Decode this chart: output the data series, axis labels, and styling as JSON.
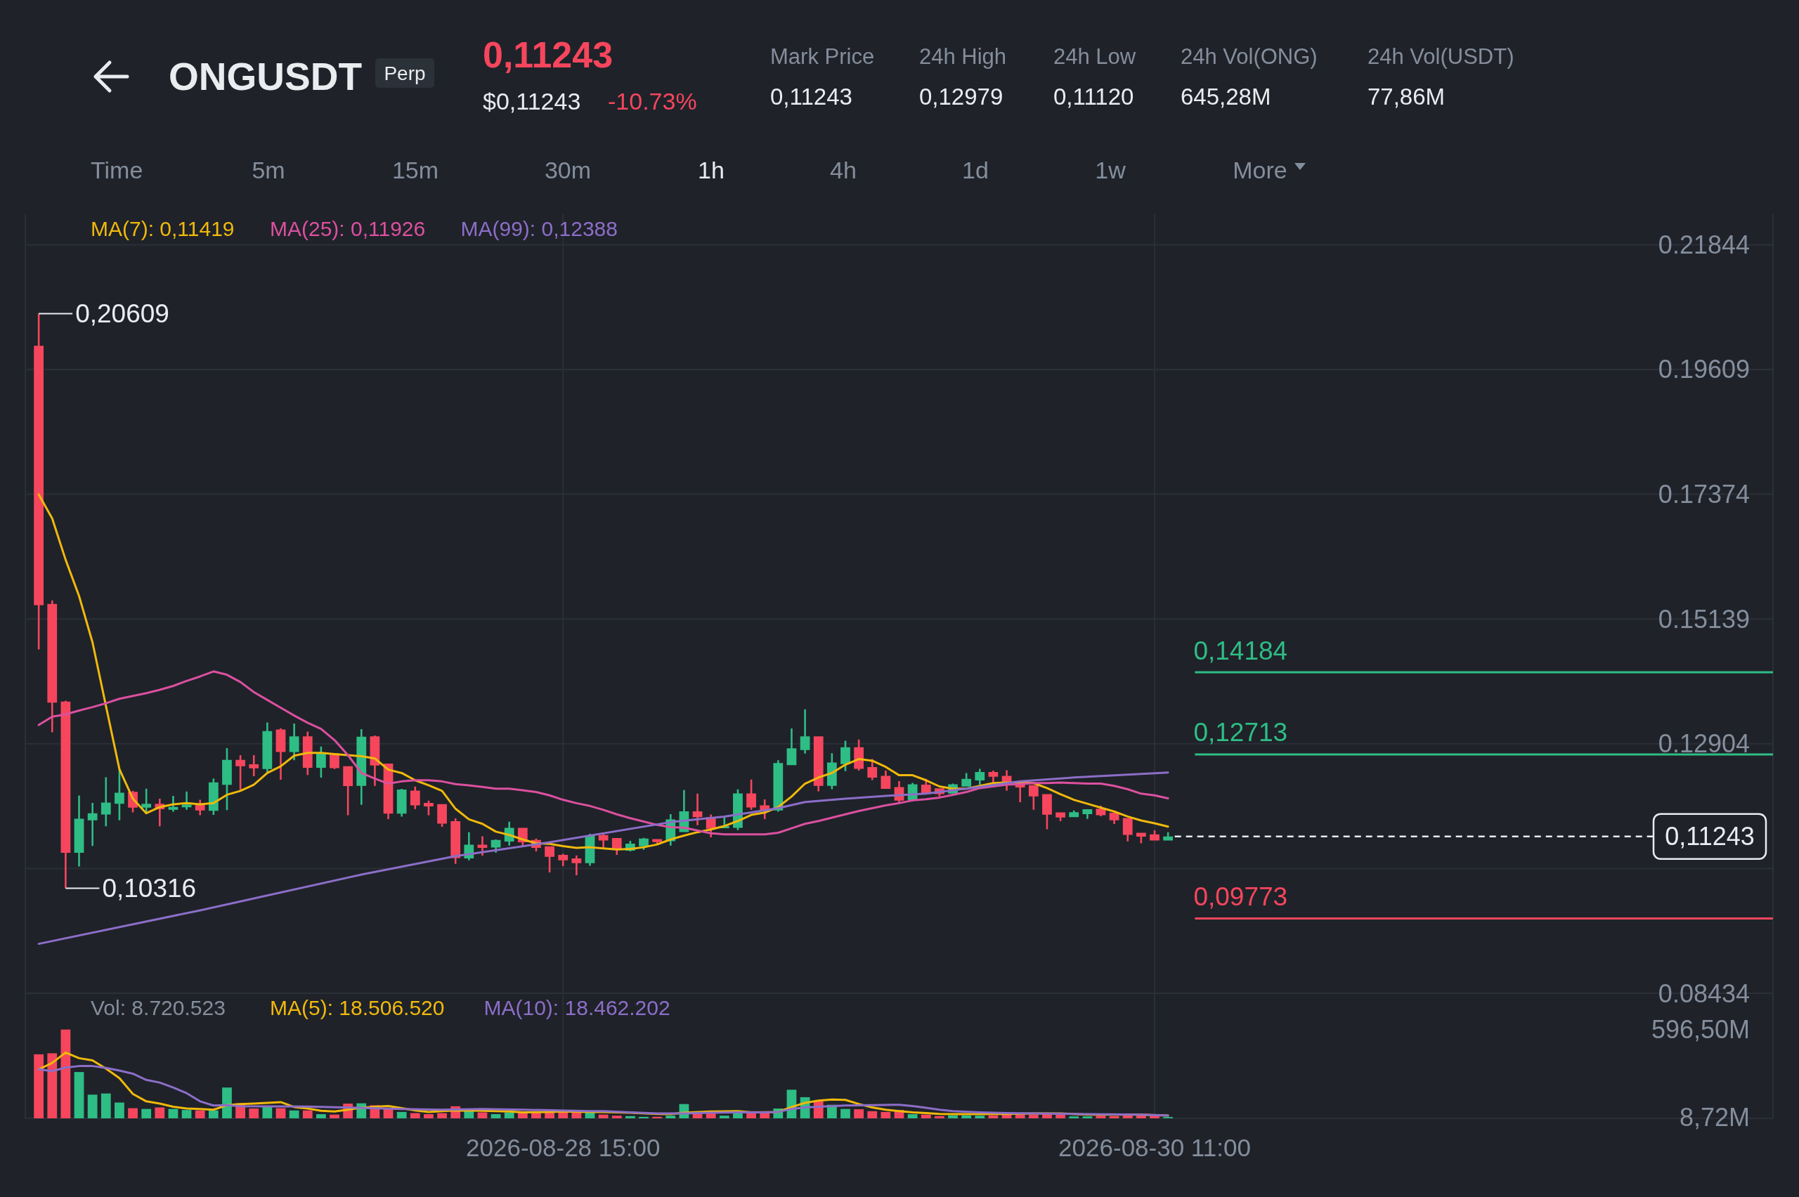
{
  "chart_data": [
    {
      "type": "candlestick",
      "title": "ONGUSDT",
      "annotations": [
        "Perp",
        "0,11243",
        "$0,11243",
        "-10.73%",
        "Mark Price",
        "0,11243",
        "24h High",
        "0,12979",
        "24h Low",
        "0,11120",
        "24h Vol(ONG)",
        "645,28M",
        "24h Vol(USDT)",
        "77,86M",
        "Time",
        "5m",
        "15m",
        "30m",
        "1h",
        "4h",
        "1d",
        "1w",
        "More",
        {
          "text": "0,20609",
          "x": "2026-08-27T00:00",
          "y": 0.20609
        },
        {
          "text": "0,10316",
          "x": "2026-08-27T02:00",
          "y": 0.10316
        }
      ],
      "x": [
        "2026-08-27T00:00",
        "2026-08-27T01:00",
        "2026-08-27T02:00",
        "2026-08-27T03:00",
        "2026-08-27T04:00",
        "2026-08-27T05:00",
        "2026-08-27T06:00",
        "2026-08-27T07:00",
        "2026-08-27T08:00",
        "2026-08-27T09:00",
        "2026-08-27T10:00",
        "2026-08-27T11:00",
        "2026-08-27T12:00",
        "2026-08-27T13:00",
        "2026-08-27T14:00",
        "2026-08-27T15:00",
        "2026-08-27T16:00",
        "2026-08-27T17:00",
        "2026-08-27T18:00",
        "2026-08-27T19:00",
        "2026-08-27T20:00",
        "2026-08-27T21:00",
        "2026-08-27T22:00",
        "2026-08-27T23:00",
        "2026-08-28T00:00",
        "2026-08-28T01:00",
        "2026-08-28T02:00",
        "2026-08-28T03:00",
        "2026-08-28T04:00",
        "2026-08-28T05:00",
        "2026-08-28T06:00",
        "2026-08-28T07:00",
        "2026-08-28T08:00",
        "2026-08-28T09:00",
        "2026-08-28T10:00",
        "2026-08-28T11:00",
        "2026-08-28T12:00",
        "2026-08-28T13:00",
        "2026-08-28T14:00",
        "2026-08-28T15:00",
        "2026-08-28T16:00",
        "2026-08-28T17:00",
        "2026-08-28T18:00",
        "2026-08-28T19:00",
        "2026-08-28T20:00",
        "2026-08-28T21:00",
        "2026-08-28T22:00",
        "2026-08-28T23:00",
        "2026-08-29T00:00",
        "2026-08-29T01:00",
        "2026-08-29T02:00",
        "2026-08-29T03:00",
        "2026-08-29T04:00",
        "2026-08-29T05:00",
        "2026-08-29T06:00",
        "2026-08-29T07:00",
        "2026-08-29T08:00",
        "2026-08-29T09:00",
        "2026-08-29T10:00",
        "2026-08-29T11:00",
        "2026-08-29T12:00",
        "2026-08-29T13:00",
        "2026-08-29T14:00",
        "2026-08-29T15:00",
        "2026-08-29T16:00",
        "2026-08-29T17:00",
        "2026-08-29T18:00",
        "2026-08-29T19:00",
        "2026-08-29T20:00",
        "2026-08-29T21:00",
        "2026-08-29T22:00",
        "2026-08-29T23:00",
        "2026-08-30T00:00",
        "2026-08-30T01:00",
        "2026-08-30T02:00",
        "2026-08-30T03:00",
        "2026-08-30T04:00",
        "2026-08-30T05:00",
        "2026-08-30T06:00",
        "2026-08-30T07:00",
        "2026-08-30T08:00",
        "2026-08-30T09:00",
        "2026-08-30T10:00",
        "2026-08-30T11:00",
        "2026-08-30T12:00"
      ],
      "ohlc": [
        [
          0.20033,
          0.20609,
          0.14594,
          0.15387
        ],
        [
          0.15408,
          0.15471,
          0.13109,
          0.1364
        ],
        [
          0.13661,
          0.13675,
          0.10316,
          0.10952
        ],
        [
          0.10952,
          0.11978,
          0.10705,
          0.1156
        ],
        [
          0.11532,
          0.11843,
          0.11072,
          0.11659
        ],
        [
          0.11638,
          0.12303,
          0.11426,
          0.1185
        ],
        [
          0.11829,
          0.12445,
          0.11532,
          0.12027
        ],
        [
          0.12041,
          0.12062,
          0.11673,
          0.11758
        ],
        [
          0.11758,
          0.12098,
          0.11673,
          0.11829
        ],
        [
          0.11829,
          0.11921,
          0.11426,
          0.1173
        ],
        [
          0.11723,
          0.1197,
          0.11687,
          0.11773
        ],
        [
          0.11765,
          0.12048,
          0.11723,
          0.11815
        ],
        [
          0.11815,
          0.119,
          0.11624,
          0.11709
        ],
        [
          0.11702,
          0.12282,
          0.11631,
          0.12211
        ],
        [
          0.12168,
          0.12827,
          0.11716,
          0.12614
        ],
        [
          0.12614,
          0.12699,
          0.12077,
          0.12501
        ],
        [
          0.12536,
          0.12699,
          0.12324,
          0.12465
        ],
        [
          0.12451,
          0.13286,
          0.12381,
          0.13131
        ],
        [
          0.13159,
          0.1318,
          0.12261,
          0.12756
        ],
        [
          0.12756,
          0.13265,
          0.12609,
          0.13038
        ],
        [
          0.13038,
          0.13123,
          0.12346,
          0.12473
        ],
        [
          0.12473,
          0.12855,
          0.12296,
          0.12735
        ],
        [
          0.12735,
          0.12735,
          0.12451,
          0.12466
        ],
        [
          0.12501,
          0.12501,
          0.11624,
          0.12147
        ],
        [
          0.1215,
          0.13165,
          0.1181,
          0.1303
        ],
        [
          0.13038,
          0.13051,
          0.12149,
          0.12514
        ],
        [
          0.12548,
          0.12548,
          0.11554,
          0.11654
        ],
        [
          0.11654,
          0.12095,
          0.116,
          0.12082
        ],
        [
          0.12065,
          0.12137,
          0.11734,
          0.11801
        ],
        [
          0.11843,
          0.11885,
          0.11625,
          0.1178
        ],
        [
          0.11822,
          0.11822,
          0.11415,
          0.11474
        ],
        [
          0.11516,
          0.11566,
          0.10753,
          0.10858
        ],
        [
          0.10849,
          0.11319,
          0.10816,
          0.11097
        ],
        [
          0.11097,
          0.11248,
          0.109,
          0.11038
        ],
        [
          0.11046,
          0.11189,
          0.10954,
          0.11181
        ],
        [
          0.11151,
          0.11508,
          0.1108,
          0.11399
        ],
        [
          0.11399,
          0.11399,
          0.11059,
          0.11139
        ],
        [
          0.11181,
          0.11206,
          0.10975,
          0.11038
        ],
        [
          0.11067,
          0.11067,
          0.10598,
          0.10879
        ],
        [
          0.10912,
          0.10933,
          0.10711,
          0.10816
        ],
        [
          0.10849,
          0.10904,
          0.10547,
          0.10765
        ],
        [
          0.10765,
          0.1129,
          0.10719,
          0.11256
        ],
        [
          0.11269,
          0.1129,
          0.11038,
          0.11172
        ],
        [
          0.11214,
          0.11214,
          0.10912,
          0.11025
        ],
        [
          0.10988,
          0.11164,
          0.10975,
          0.11113
        ],
        [
          0.11067,
          0.11218,
          0.11004,
          0.11206
        ],
        [
          0.11197,
          0.11197,
          0.11101,
          0.11143
        ],
        [
          0.1116,
          0.11644,
          0.1108,
          0.1155
        ],
        [
          0.11323,
          0.12074,
          0.11323,
          0.11692
        ],
        [
          0.11692,
          0.12011,
          0.11445,
          0.11591
        ],
        [
          0.11591,
          0.11638,
          0.11227,
          0.11382
        ],
        [
          0.1139,
          0.11604,
          0.1139,
          0.11432
        ],
        [
          0.11399,
          0.12086,
          0.11357,
          0.12015
        ],
        [
          0.12015,
          0.12262,
          0.11721,
          0.11763
        ],
        [
          0.11801,
          0.11906,
          0.11554,
          0.11709
        ],
        [
          0.11709,
          0.1261,
          0.11688,
          0.1256
        ],
        [
          0.12522,
          0.13177,
          0.12522,
          0.12824
        ],
        [
          0.12791,
          0.1352,
          0.12728,
          0.13038
        ],
        [
          0.13038,
          0.13038,
          0.12053,
          0.12149
        ],
        [
          0.12149,
          0.12736,
          0.12091,
          0.12569
        ],
        [
          0.12539,
          0.12959,
          0.12413,
          0.12841
        ],
        [
          0.12841,
          0.12979,
          0.12422,
          0.12455
        ],
        [
          0.12485,
          0.12631,
          0.12254,
          0.12296
        ],
        [
          0.1233,
          0.12422,
          0.12095,
          0.12095
        ],
        [
          0.12128,
          0.12233,
          0.11847,
          0.11885
        ],
        [
          0.11893,
          0.12204,
          0.11877,
          0.12179
        ],
        [
          0.1217,
          0.12275,
          0.12011,
          0.12011
        ],
        [
          0.12107,
          0.12107,
          0.1196,
          0.12003
        ],
        [
          0.12011,
          0.12191,
          0.12011,
          0.12179
        ],
        [
          0.12137,
          0.1238,
          0.12137,
          0.12275
        ],
        [
          0.12246,
          0.12455,
          0.1217,
          0.12397
        ],
        [
          0.12397,
          0.12422,
          0.12204,
          0.12313
        ],
        [
          0.1233,
          0.1243,
          0.12065,
          0.12212
        ],
        [
          0.12233,
          0.12233,
          0.11856,
          0.1212
        ],
        [
          0.12162,
          0.12162,
          0.11722,
          0.1196
        ],
        [
          0.12003,
          0.12003,
          0.11373,
          0.11633
        ],
        [
          0.11675,
          0.11675,
          0.11516,
          0.11583
        ],
        [
          0.11591,
          0.11709,
          0.11591,
          0.11679
        ],
        [
          0.11642,
          0.1173,
          0.11558,
          0.1173
        ],
        [
          0.11742,
          0.11793,
          0.11604,
          0.11625
        ],
        [
          0.11667,
          0.11667,
          0.11466,
          0.11533
        ],
        [
          0.11575,
          0.11575,
          0.11155,
          0.11273
        ],
        [
          0.11311,
          0.11311,
          0.1112,
          0.11239
        ],
        [
          0.11281,
          0.11353,
          0.11172,
          0.11172
        ],
        [
          0.11172,
          0.11319,
          0.11172,
          0.11243
        ]
      ],
      "colors": [
        "#f6465d",
        "#f6465d",
        "#f6465d",
        "#2ebd85",
        "#2ebd85",
        "#2ebd85",
        "#2ebd85",
        "#f6465d",
        "#2ebd85",
        "#f6465d",
        "#2ebd85",
        "#2ebd85",
        "#f6465d",
        "#2ebd85",
        "#2ebd85",
        "#f6465d",
        "#f6465d",
        "#2ebd85",
        "#f6465d",
        "#2ebd85",
        "#f6465d",
        "#2ebd85",
        "#f6465d",
        "#f6465d",
        "#2ebd85",
        "#f6465d",
        "#f6465d",
        "#2ebd85",
        "#f6465d",
        "#f6465d",
        "#f6465d",
        "#f6465d",
        "#2ebd85",
        "#f6465d",
        "#2ebd85",
        "#2ebd85",
        "#f6465d",
        "#f6465d",
        "#f6465d",
        "#f6465d",
        "#f6465d",
        "#2ebd85",
        "#f6465d",
        "#f6465d",
        "#2ebd85",
        "#2ebd85",
        "#f6465d",
        "#2ebd85",
        "#2ebd85",
        "#f6465d",
        "#f6465d",
        "#2ebd85",
        "#2ebd85",
        "#f6465d",
        "#f6465d",
        "#2ebd85",
        "#2ebd85",
        "#2ebd85",
        "#f6465d",
        "#2ebd85",
        "#2ebd85",
        "#f6465d",
        "#f6465d",
        "#f6465d",
        "#f6465d",
        "#2ebd85",
        "#f6465d",
        "#f6465d",
        "#2ebd85",
        "#2ebd85",
        "#2ebd85",
        "#f6465d",
        "#f6465d",
        "#f6465d",
        "#f6465d",
        "#f6465d",
        "#f6465d",
        "#2ebd85",
        "#2ebd85",
        "#f6465d",
        "#f6465d",
        "#f6465d",
        "#f6465d",
        "#f6465d",
        "#2ebd85"
      ],
      "series": [
        {
          "name": "MA(7): 0,11419",
          "type": "line",
          "color": "#f0b90b",
          "values": [
            0.1737,
            0.1694,
            0.162,
            0.1555,
            0.1472,
            0.1358,
            0.1245,
            0.1192,
            0.1166,
            0.1177,
            0.1182,
            0.1184,
            0.1182,
            0.1184,
            0.1199,
            0.1206,
            0.1217,
            0.1238,
            0.125,
            0.1269,
            0.1274,
            0.1274,
            0.1272,
            0.127,
            0.1268,
            0.1264,
            0.1244,
            0.1238,
            0.1225,
            0.1216,
            0.1206,
            0.1174,
            0.1155,
            0.1147,
            0.1133,
            0.1127,
            0.1119,
            0.1112,
            0.1111,
            0.1107,
            0.1104,
            0.1105,
            0.1103,
            0.1101,
            0.1102,
            0.1105,
            0.111,
            0.1119,
            0.1126,
            0.1132,
            0.1137,
            0.1143,
            0.1152,
            0.1163,
            0.1167,
            0.1177,
            0.1196,
            0.1219,
            0.123,
            0.1238,
            0.1253,
            0.1263,
            0.126,
            0.1249,
            0.1234,
            0.1234,
            0.1225,
            0.1214,
            0.121,
            0.121,
            0.1215,
            0.122,
            0.1221,
            0.1221,
            0.122,
            0.1211,
            0.12,
            0.119,
            0.1183,
            0.1176,
            0.1169,
            0.116,
            0.1153,
            0.1148,
            0.11419
          ]
        },
        {
          "name": "MA(25): 0,11926",
          "type": "line",
          "color": "#dc50a0",
          "values": [
            0.1324,
            0.1339,
            0.1343,
            0.135,
            0.1356,
            0.1363,
            0.1371,
            0.1376,
            0.1381,
            0.1387,
            0.1394,
            0.1403,
            0.1411,
            0.142,
            0.1414,
            0.1401,
            0.1383,
            0.1369,
            0.1355,
            0.1341,
            0.1328,
            0.1317,
            0.1297,
            0.127,
            0.1238,
            0.1228,
            0.1219,
            0.1223,
            0.1225,
            0.1225,
            0.1223,
            0.1218,
            0.1216,
            0.1213,
            0.121,
            0.121,
            0.1207,
            0.1204,
            0.1198,
            0.119,
            0.1184,
            0.1179,
            0.1172,
            0.1164,
            0.1157,
            0.1151,
            0.1145,
            0.1141,
            0.114,
            0.1135,
            0.113,
            0.1128,
            0.1128,
            0.1128,
            0.1128,
            0.1131,
            0.1139,
            0.1147,
            0.1152,
            0.1158,
            0.1164,
            0.117,
            0.1175,
            0.118,
            0.1184,
            0.1189,
            0.1191,
            0.1194,
            0.1199,
            0.1204,
            0.1211,
            0.1214,
            0.1217,
            0.1218,
            0.122,
            0.122,
            0.1221,
            0.122,
            0.1219,
            0.1219,
            0.1215,
            0.1209,
            0.1201,
            0.1198,
            0.11926
          ]
        },
        {
          "name": "MA(99): 0,12388",
          "type": "line",
          "color": "#8c6ec8",
          "x": [
            "2026-08-27T00:00",
            "2026-08-27T12:00",
            "2026-08-28T00:00",
            "2026-08-28T07:00",
            "2026-08-28T14:00",
            "2026-08-28T23:00",
            "2026-08-29T03:00",
            "2026-08-29T07:00",
            "2026-08-29T09:00",
            "2026-08-29T12:00",
            "2026-08-29T15:00",
            "2026-08-29T18:00",
            "2026-08-29T20:00",
            "2026-08-29T22:00",
            "2026-08-30T01:00",
            "2026-08-30T05:00",
            "2026-08-30T09:00",
            "2026-08-30T12:00"
          ],
          "values": [
            0.0932,
            0.0992,
            0.1056,
            0.1089,
            0.1114,
            0.115,
            0.116,
            0.1175,
            0.1186,
            0.1192,
            0.1197,
            0.1201,
            0.1207,
            0.1213,
            0.1223,
            0.123,
            0.1235,
            0.12388
          ]
        }
      ],
      "xlim": [
        "2026-08-26T23:00",
        "2026-09-01T09:00"
      ],
      "xticks": [
        "2026-08-28T15:00",
        "2026-08-30T11:00"
      ],
      "ylim": [
        0.08434,
        0.2239
      ],
      "yticks": [
        0.08434,
        {
          "value": 0.10669,
          "label": null
        },
        0.12904,
        0.15139,
        0.17374,
        0.19609,
        0.21844
      ],
      "ref_lines": [
        {
          "axis": "y",
          "value": 0.14184,
          "label": "0,14184",
          "color": "#2ebd85"
        },
        {
          "axis": "y",
          "value": 0.12713,
          "label": "0,12713",
          "color": "#2ebd85"
        },
        {
          "axis": "y",
          "value": 0.11243,
          "label": "0,11243",
          "color": "#eaecef",
          "line_style": "dashed"
        },
        {
          "axis": "y",
          "value": 0.09773,
          "label": "0,09773",
          "color": "#f6465d"
        }
      ],
      "grid": true,
      "legend": "top left",
      "tick_labels": "y"
    },
    {
      "type": "bar",
      "x": [
        "2026-08-27T00:00",
        "2026-08-27T01:00",
        "2026-08-27T02:00",
        "2026-08-27T03:00",
        "2026-08-27T04:00",
        "2026-08-27T05:00",
        "2026-08-27T06:00",
        "2026-08-27T07:00",
        "2026-08-27T08:00",
        "2026-08-27T09:00",
        "2026-08-27T10:00",
        "2026-08-27T11:00",
        "2026-08-27T12:00",
        "2026-08-27T13:00",
        "2026-08-27T14:00",
        "2026-08-27T15:00",
        "2026-08-27T16:00",
        "2026-08-27T17:00",
        "2026-08-27T18:00",
        "2026-08-27T19:00",
        "2026-08-27T20:00",
        "2026-08-27T21:00",
        "2026-08-27T22:00",
        "2026-08-27T23:00",
        "2026-08-28T00:00",
        "2026-08-28T01:00",
        "2026-08-28T02:00",
        "2026-08-28T03:00",
        "2026-08-28T04:00",
        "2026-08-28T05:00",
        "2026-08-28T06:00",
        "2026-08-28T07:00",
        "2026-08-28T08:00",
        "2026-08-28T09:00",
        "2026-08-28T10:00",
        "2026-08-28T11:00",
        "2026-08-28T12:00",
        "2026-08-28T13:00",
        "2026-08-28T14:00",
        "2026-08-28T15:00",
        "2026-08-28T16:00",
        "2026-08-28T17:00",
        "2026-08-28T18:00",
        "2026-08-28T19:00",
        "2026-08-28T20:00",
        "2026-08-28T21:00",
        "2026-08-28T22:00",
        "2026-08-28T23:00",
        "2026-08-29T00:00",
        "2026-08-29T01:00",
        "2026-08-29T02:00",
        "2026-08-29T03:00",
        "2026-08-29T04:00",
        "2026-08-29T05:00",
        "2026-08-29T06:00",
        "2026-08-29T07:00",
        "2026-08-29T08:00",
        "2026-08-29T09:00",
        "2026-08-29T10:00",
        "2026-08-29T11:00",
        "2026-08-29T12:00",
        "2026-08-29T13:00",
        "2026-08-29T14:00",
        "2026-08-29T15:00",
        "2026-08-29T16:00",
        "2026-08-29T17:00",
        "2026-08-29T18:00",
        "2026-08-29T19:00",
        "2026-08-29T20:00",
        "2026-08-29T21:00",
        "2026-08-29T22:00",
        "2026-08-29T23:00",
        "2026-08-30T00:00",
        "2026-08-30T01:00",
        "2026-08-30T02:00",
        "2026-08-30T03:00",
        "2026-08-30T04:00",
        "2026-08-30T05:00",
        "2026-08-30T06:00",
        "2026-08-30T07:00",
        "2026-08-30T08:00",
        "2026-08-30T09:00",
        "2026-08-30T10:00",
        "2026-08-30T11:00",
        "2026-08-30T12:00"
      ],
      "series": [
        {
          "name": "Vol: 8.720.523",
          "values": [
            430,
            437,
            596.5,
            311,
            159,
            167,
            106,
            68,
            63,
            73,
            63,
            56,
            53,
            53,
            207,
            101,
            66,
            76,
            68,
            53,
            53,
            28,
            25,
            99,
            101,
            88,
            63,
            43,
            35,
            28,
            35,
            81,
            56,
            40,
            28,
            40,
            40,
            38,
            56,
            40,
            40,
            40,
            25,
            18,
            15,
            10,
            10,
            18,
            96,
            38,
            38,
            18,
            38,
            48,
            38,
            66,
            192,
            142,
            116,
            91,
            63,
            61,
            48,
            43,
            56,
            28,
            25,
            15,
            20,
            20,
            18,
            20,
            28,
            25,
            25,
            35,
            25,
            13,
            13,
            18,
            15,
            33,
            20,
            15,
            8.72
          ],
          "colors": [
            "#f6465d",
            "#f6465d",
            "#f6465d",
            "#2ebd85",
            "#2ebd85",
            "#2ebd85",
            "#2ebd85",
            "#f6465d",
            "#2ebd85",
            "#f6465d",
            "#2ebd85",
            "#2ebd85",
            "#f6465d",
            "#2ebd85",
            "#2ebd85",
            "#f6465d",
            "#f6465d",
            "#2ebd85",
            "#f6465d",
            "#2ebd85",
            "#f6465d",
            "#2ebd85",
            "#f6465d",
            "#f6465d",
            "#2ebd85",
            "#f6465d",
            "#f6465d",
            "#2ebd85",
            "#f6465d",
            "#f6465d",
            "#f6465d",
            "#f6465d",
            "#2ebd85",
            "#f6465d",
            "#2ebd85",
            "#2ebd85",
            "#f6465d",
            "#f6465d",
            "#f6465d",
            "#f6465d",
            "#f6465d",
            "#2ebd85",
            "#f6465d",
            "#f6465d",
            "#2ebd85",
            "#2ebd85",
            "#f6465d",
            "#2ebd85",
            "#2ebd85",
            "#f6465d",
            "#f6465d",
            "#2ebd85",
            "#2ebd85",
            "#f6465d",
            "#f6465d",
            "#2ebd85",
            "#2ebd85",
            "#2ebd85",
            "#f6465d",
            "#2ebd85",
            "#2ebd85",
            "#f6465d",
            "#f6465d",
            "#f6465d",
            "#f6465d",
            "#2ebd85",
            "#f6465d",
            "#f6465d",
            "#2ebd85",
            "#2ebd85",
            "#2ebd85",
            "#f6465d",
            "#f6465d",
            "#f6465d",
            "#f6465d",
            "#f6465d",
            "#f6465d",
            "#2ebd85",
            "#2ebd85",
            "#f6465d",
            "#f6465d",
            "#f6465d",
            "#f6465d",
            "#f6465d",
            "#2ebd85"
          ]
        },
        {
          "name": "MA(5): 18.506.520",
          "type": "line",
          "color": "#f0b90b",
          "x": [
            "2026-08-27T00:00",
            "2026-08-27T01:00",
            "2026-08-27T02:00",
            "2026-08-27T03:00",
            "2026-08-27T04:00",
            "2026-08-27T05:00",
            "2026-08-27T06:00",
            "2026-08-27T07:00",
            "2026-08-27T08:00",
            "2026-08-27T09:00",
            "2026-08-27T10:00",
            "2026-08-27T11:00",
            "2026-08-27T12:00",
            "2026-08-27T13:00",
            "2026-08-27T14:00",
            "2026-08-27T15:00",
            "2026-08-27T16:00",
            "2026-08-27T17:00",
            "2026-08-27T18:00",
            "2026-08-27T19:00",
            "2026-08-27T20:00",
            "2026-08-27T21:00",
            "2026-08-27T22:00",
            "2026-08-27T23:00",
            "2026-08-28T00:00",
            "2026-08-28T01:00",
            "2026-08-28T02:00",
            "2026-08-28T03:00",
            "2026-08-28T04:00",
            "2026-08-28T05:00",
            "2026-08-28T06:00",
            "2026-08-28T07:00",
            "2026-08-28T09:00",
            "2026-08-28T11:00",
            "2026-08-28T12:00",
            "2026-08-28T14:00",
            "2026-08-28T15:00",
            "2026-08-28T17:00",
            "2026-08-28T18:00",
            "2026-08-28T20:00",
            "2026-08-28T22:00",
            "2026-08-28T23:00",
            "2026-08-29T00:00",
            "2026-08-29T02:00",
            "2026-08-29T04:00",
            "2026-08-29T05:00",
            "2026-08-29T07:00",
            "2026-08-29T08:00",
            "2026-08-29T09:00",
            "2026-08-29T10:00",
            "2026-08-29T11:00",
            "2026-08-29T12:00",
            "2026-08-29T13:00",
            "2026-08-29T14:00",
            "2026-08-29T15:00",
            "2026-08-29T16:00",
            "2026-08-29T17:00",
            "2026-08-29T18:00",
            "2026-08-29T19:00",
            "2026-08-29T20:00",
            "2026-08-29T22:00",
            "2026-08-30T00:00",
            "2026-08-30T02:00",
            "2026-08-30T04:00",
            "2026-08-30T06:00",
            "2026-08-30T08:00",
            "2026-08-30T10:00",
            "2026-08-30T12:00"
          ],
          "values": [
            329,
            372,
            442,
            404,
            389,
            334,
            270,
            164,
            114,
            99,
            78,
            66,
            63,
            58,
            88,
            96,
            99,
            104,
            109,
            76,
            66,
            51,
            46,
            58,
            71,
            78,
            83,
            68,
            53,
            43,
            48,
            53,
            51,
            46,
            40,
            43,
            46,
            43,
            43,
            38,
            30,
            28,
            38,
            46,
            48,
            40,
            43,
            76,
            104,
            119,
            126,
            124,
            96,
            73,
            58,
            48,
            40,
            35,
            30,
            28,
            28,
            30,
            33,
            33,
            25,
            25,
            25,
            18.51
          ]
        },
        {
          "name": "MA(10): 18.462.202",
          "type": "line",
          "color": "#8c6ec8",
          "x": [
            "2026-08-27T00:00",
            "2026-08-27T01:00",
            "2026-08-27T02:00",
            "2026-08-27T03:00",
            "2026-08-27T04:00",
            "2026-08-27T05:00",
            "2026-08-27T06:00",
            "2026-08-27T07:00",
            "2026-08-27T08:00",
            "2026-08-27T09:00",
            "2026-08-27T10:00",
            "2026-08-27T11:00",
            "2026-08-27T12:00",
            "2026-08-27T13:00",
            "2026-08-27T14:00",
            "2026-08-27T15:00",
            "2026-08-27T20:00",
            "2026-08-28T03:00",
            "2026-08-28T06:00",
            "2026-08-28T09:00",
            "2026-08-28T12:00",
            "2026-08-28T17:00",
            "2026-08-28T18:00",
            "2026-08-28T20:00",
            "2026-08-28T22:00",
            "2026-08-29T00:00",
            "2026-08-29T02:00",
            "2026-08-29T04:00",
            "2026-08-29T06:00",
            "2026-08-29T07:00",
            "2026-08-29T08:00",
            "2026-08-29T09:00",
            "2026-08-29T10:00",
            "2026-08-29T12:00",
            "2026-08-29T14:00",
            "2026-08-29T16:00",
            "2026-08-29T17:00",
            "2026-08-29T18:00",
            "2026-08-29T19:00",
            "2026-08-29T20:00",
            "2026-08-29T22:00",
            "2026-08-30T00:00",
            "2026-08-30T02:00",
            "2026-08-30T06:00",
            "2026-08-30T10:00",
            "2026-08-30T12:00"
          ],
          "values": [
            329,
            317,
            341,
            351,
            351,
            339,
            321,
            300,
            258,
            240,
            207,
            169,
            114,
            86,
            88,
            81,
            79,
            63,
            58,
            63,
            58,
            48,
            48,
            40,
            33,
            33,
            38,
            40,
            40,
            43,
            63,
            73,
            78,
            86,
            88,
            91,
            83,
            71,
            58,
            48,
            40,
            35,
            33,
            28,
            25,
            18.46
          ]
        }
      ],
      "xlim": [
        "2026-08-26T23:00",
        "2026-09-01T09:00"
      ],
      "xticks": [
        {
          "value": "2026-08-28T15:00",
          "label": "2026-08-28 15:00"
        },
        {
          "value": "2026-08-30T11:00",
          "label": "2026-08-30 11:00"
        }
      ],
      "ylim": [
        0,
        840
      ],
      "yticks": [
        {
          "value": 596.5,
          "label": "596,50M"
        },
        {
          "value": 8.72,
          "label": "8,72M"
        }
      ],
      "grid": "x",
      "legend": "top left"
    }
  ]
}
